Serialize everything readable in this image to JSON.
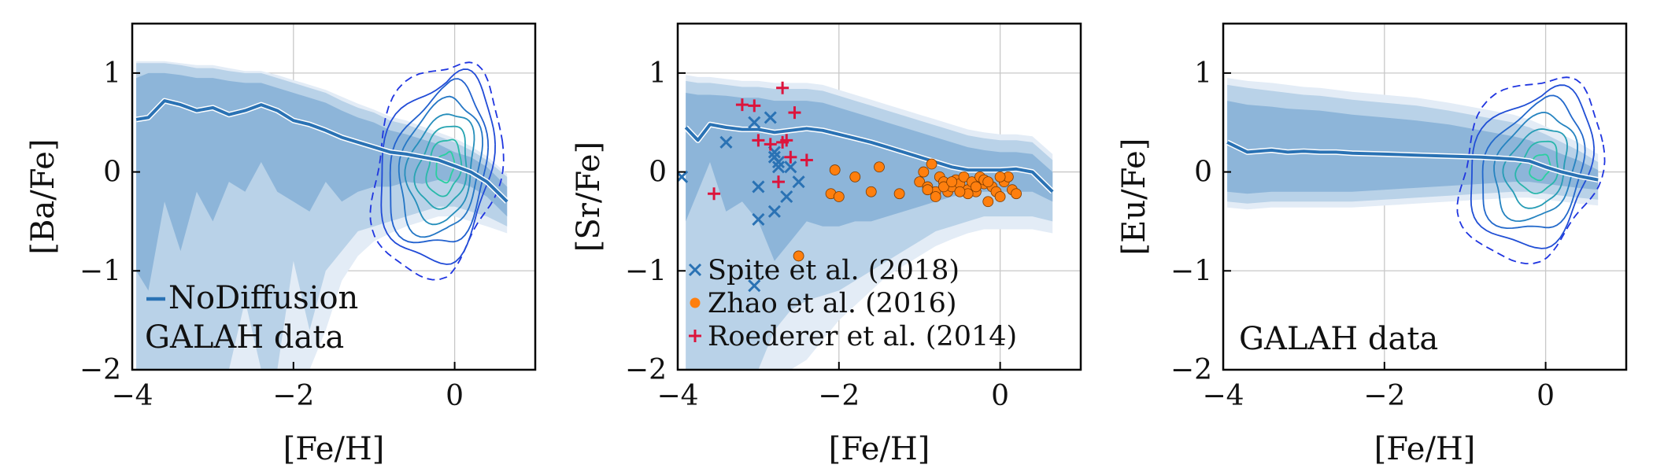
{
  "chart_data": [
    {
      "type": "line",
      "xlabel": "[Fe/H]",
      "ylabel": "[Ba/Fe]",
      "xlim": [
        -4,
        1
      ],
      "ylim": [
        -2,
        1.5
      ],
      "xticks": [
        -4,
        -2,
        0
      ],
      "xtick_labels": [
        "−4",
        "−2",
        "0"
      ],
      "yticks": [
        -2,
        -1,
        0,
        1
      ],
      "ytick_labels": [
        "−2",
        "−1",
        "0",
        "1"
      ],
      "grid": true,
      "model": {
        "name": "NoDiffusion",
        "color": "#2a72b4",
        "x": [
          -3.95,
          -3.8,
          -3.6,
          -3.4,
          -3.2,
          -3.0,
          -2.8,
          -2.6,
          -2.4,
          -2.2,
          -2.0,
          -1.8,
          -1.6,
          -1.4,
          -1.2,
          -1.0,
          -0.8,
          -0.6,
          -0.4,
          -0.2,
          0.0,
          0.2,
          0.4,
          0.65
        ],
        "y": [
          0.53,
          0.55,
          0.72,
          0.68,
          0.62,
          0.65,
          0.58,
          0.62,
          0.68,
          0.62,
          0.52,
          0.48,
          0.42,
          0.35,
          0.3,
          0.25,
          0.2,
          0.18,
          0.15,
          0.12,
          0.06,
          0.0,
          -0.1,
          -0.3
        ],
        "band_inner": {
          "upper": [
            0.95,
            1.0,
            1.0,
            0.98,
            0.95,
            0.95,
            0.92,
            0.9,
            0.9,
            0.85,
            0.8,
            0.75,
            0.7,
            0.62,
            0.55,
            0.5,
            0.42,
            0.38,
            0.33,
            0.28,
            0.2,
            0.15,
            0.05,
            -0.15
          ],
          "lower": [
            -1.0,
            -1.2,
            -0.3,
            -0.8,
            -0.2,
            -0.5,
            -0.1,
            -0.2,
            0.1,
            -0.2,
            -0.3,
            -0.4,
            -0.1,
            -0.3,
            -0.2,
            -0.15,
            -0.15,
            -0.1,
            -0.12,
            -0.08,
            -0.1,
            -0.15,
            -0.25,
            -0.45
          ]
        },
        "band_outer": {
          "upper": [
            1.1,
            1.1,
            1.1,
            1.08,
            1.05,
            1.05,
            1.02,
            1.0,
            1.0,
            0.95,
            0.9,
            0.85,
            0.8,
            0.72,
            0.65,
            0.6,
            0.52,
            0.48,
            0.42,
            0.36,
            0.3,
            0.22,
            0.12,
            -0.05
          ],
          "lower": [
            -2.0,
            -2.0,
            -2.0,
            -2.0,
            -2.0,
            -2.0,
            -2.0,
            -1.3,
            -2.0,
            -2.0,
            -0.9,
            -1.6,
            -1.0,
            -0.8,
            -0.6,
            -0.55,
            -0.5,
            -0.45,
            -0.4,
            -0.35,
            -0.35,
            -0.4,
            -0.45,
            -0.55
          ]
        },
        "band_faint": {
          "upper": [
            1.12,
            1.12,
            1.12,
            1.1,
            1.08,
            1.08,
            1.05,
            1.02,
            1.02,
            0.98,
            0.93,
            0.88,
            0.83,
            0.76,
            0.69,
            0.63,
            0.56,
            0.52,
            0.46,
            0.4,
            0.34,
            0.26,
            0.16,
            -0.02
          ],
          "lower": [
            -2.0,
            -2.0,
            -2.0,
            -2.0,
            -2.0,
            -2.0,
            -2.0,
            -2.0,
            -2.0,
            -2.0,
            -2.0,
            -2.0,
            -1.6,
            -1.1,
            -0.85,
            -0.7,
            -0.62,
            -0.55,
            -0.5,
            -0.45,
            -0.45,
            -0.5,
            -0.55,
            -0.62
          ]
        }
      },
      "contours": {
        "center": [
          -0.1,
          0.05
        ],
        "levels": 8,
        "rx_max": 0.95,
        "ry_max": 1.05,
        "color_outer": "#1f35e0",
        "color_inner": "#2ad0a0"
      },
      "legend": [
        {
          "label": "NoDiffusion",
          "marker": "line"
        }
      ],
      "annotation": "GALAH data"
    },
    {
      "type": "scatter",
      "xlabel": "[Fe/H]",
      "ylabel": "[Sr/Fe]",
      "xlim": [
        -4,
        1
      ],
      "ylim": [
        -2,
        1.5
      ],
      "xticks": [
        -4,
        -2,
        0
      ],
      "xtick_labels": [
        "−4",
        "−2",
        "0"
      ],
      "yticks": [
        -2,
        -1,
        0,
        1
      ],
      "ytick_labels": [
        "−2",
        "−1",
        "0",
        "1"
      ],
      "grid": true,
      "model": {
        "color": "#2a72b4",
        "x": [
          -3.9,
          -3.75,
          -3.6,
          -3.4,
          -3.2,
          -3.0,
          -2.8,
          -2.6,
          -2.4,
          -2.2,
          -2.0,
          -1.8,
          -1.6,
          -1.4,
          -1.2,
          -1.0,
          -0.8,
          -0.6,
          -0.4,
          -0.2,
          0.0,
          0.2,
          0.4,
          0.65
        ],
        "y": [
          0.45,
          0.32,
          0.48,
          0.45,
          0.43,
          0.43,
          0.4,
          0.42,
          0.44,
          0.42,
          0.38,
          0.34,
          0.3,
          0.25,
          0.2,
          0.15,
          0.1,
          0.05,
          0.02,
          0.02,
          0.02,
          0.03,
          0.0,
          -0.2
        ],
        "band_inner": {
          "upper": [
            0.8,
            0.78,
            0.78,
            0.77,
            0.75,
            0.75,
            0.72,
            0.72,
            0.72,
            0.7,
            0.65,
            0.6,
            0.55,
            0.5,
            0.45,
            0.4,
            0.35,
            0.3,
            0.25,
            0.22,
            0.2,
            0.2,
            0.18,
            0.0
          ],
          "lower": [
            -0.5,
            -0.2,
            0.1,
            -0.4,
            -0.3,
            -0.5,
            -0.9,
            -0.7,
            -0.5,
            -0.55,
            -0.55,
            -0.5,
            -0.5,
            -0.45,
            -0.4,
            -0.35,
            -0.3,
            -0.25,
            -0.22,
            -0.2,
            -0.2,
            -0.2,
            -0.2,
            -0.3
          ]
        },
        "band_outer": {
          "upper": [
            0.92,
            0.9,
            0.9,
            0.88,
            0.86,
            0.86,
            0.84,
            0.84,
            0.84,
            0.82,
            0.77,
            0.72,
            0.67,
            0.62,
            0.57,
            0.52,
            0.47,
            0.42,
            0.37,
            0.34,
            0.32,
            0.32,
            0.3,
            0.12
          ],
          "lower": [
            -2.0,
            -2.0,
            -2.0,
            -2.0,
            -2.0,
            -2.0,
            -1.6,
            -1.4,
            -1.3,
            -1.25,
            -1.2,
            -1.1,
            -1.0,
            -0.9,
            -0.8,
            -0.7,
            -0.6,
            -0.55,
            -0.5,
            -0.45,
            -0.45,
            -0.45,
            -0.45,
            -0.5
          ]
        },
        "band_faint": {
          "upper": [
            0.98,
            0.96,
            0.96,
            0.94,
            0.92,
            0.92,
            0.9,
            0.9,
            0.9,
            0.88,
            0.83,
            0.78,
            0.73,
            0.68,
            0.63,
            0.58,
            0.53,
            0.48,
            0.43,
            0.4,
            0.38,
            0.38,
            0.36,
            0.18
          ],
          "lower": [
            -2.0,
            -2.0,
            -2.0,
            -2.0,
            -2.0,
            -2.0,
            -2.0,
            -2.0,
            -1.9,
            -1.7,
            -1.5,
            -1.35,
            -1.2,
            -1.05,
            -0.95,
            -0.85,
            -0.75,
            -0.68,
            -0.62,
            -0.58,
            -0.58,
            -0.58,
            -0.58,
            -0.62
          ]
        }
      },
      "series": [
        {
          "name": "Spite et al. (2018)",
          "marker": "x",
          "color": "#2a72b4",
          "x": [
            -3.95,
            -3.4,
            -3.05,
            -2.85,
            -2.8,
            -2.75,
            -3.0,
            -2.8,
            -2.6,
            -2.5,
            -2.65,
            -2.8,
            -3.0,
            -3.05,
            -2.75
          ],
          "y": [
            -0.05,
            0.3,
            0.5,
            0.55,
            0.15,
            0.1,
            -0.15,
            -0.4,
            0.05,
            -0.1,
            -0.25,
            0.2,
            -0.48,
            -1.15,
            0.05
          ]
        },
        {
          "name": "Zhao et al. (2016)",
          "marker": "o",
          "color": "#ff7f0e",
          "x": [
            -2.5,
            -2.1,
            -2.05,
            -2.0,
            -1.8,
            -1.6,
            -1.5,
            -1.25,
            -1.0,
            -0.95,
            -0.9,
            -0.85,
            -0.8,
            -0.75,
            -0.7,
            -0.65,
            -0.6,
            -0.55,
            -0.5,
            -0.45,
            -0.4,
            -0.35,
            -0.3,
            -0.25,
            -0.2,
            -0.15,
            -0.1,
            -0.05,
            0.0,
            0.05,
            0.1,
            0.15,
            0.2,
            -0.9,
            -0.8,
            -0.7,
            -0.6,
            -0.4,
            -0.2,
            0.0,
            -0.3,
            -0.5,
            -0.15
          ],
          "y": [
            -0.85,
            -0.22,
            0.02,
            -0.25,
            -0.05,
            -0.2,
            0.05,
            -0.22,
            -0.1,
            0.0,
            -0.15,
            0.08,
            -0.2,
            -0.05,
            -0.1,
            -0.2,
            -0.15,
            -0.08,
            -0.12,
            -0.05,
            -0.18,
            -0.1,
            -0.2,
            -0.05,
            -0.12,
            -0.3,
            -0.15,
            -0.2,
            -0.25,
            -0.1,
            -0.05,
            -0.18,
            -0.22,
            -0.18,
            -0.25,
            -0.15,
            -0.1,
            -0.22,
            -0.08,
            -0.05,
            -0.15,
            -0.2,
            -0.1
          ]
        },
        {
          "name": "Roederer et al. (2014)",
          "marker": "+",
          "color": "#dc143c",
          "x": [
            -3.55,
            -3.2,
            -3.05,
            -3.0,
            -2.85,
            -2.7,
            -2.7,
            -2.6,
            -2.55,
            -2.4,
            -2.65,
            -2.75
          ],
          "y": [
            -0.22,
            0.68,
            0.67,
            0.32,
            0.28,
            0.85,
            0.3,
            0.15,
            0.6,
            0.12,
            0.32,
            -0.1
          ]
        }
      ],
      "legend": [
        {
          "label": "Spite et al. (2018)",
          "marker": "x"
        },
        {
          "label": "Zhao et al. (2016)",
          "marker": "o"
        },
        {
          "label": "Roederer et al. (2014)",
          "marker": "+"
        }
      ]
    },
    {
      "type": "line",
      "xlabel": "[Fe/H]",
      "ylabel": "[Eu/Fe]",
      "xlim": [
        -4,
        1
      ],
      "ylim": [
        -2,
        1.5
      ],
      "xticks": [
        -4,
        -2,
        0
      ],
      "xtick_labels": [
        "−4",
        "−2",
        "0"
      ],
      "yticks": [
        -2,
        -1,
        0,
        1
      ],
      "ytick_labels": [
        "−2",
        "−1",
        "0",
        "1"
      ],
      "grid": true,
      "model": {
        "color": "#2a72b4",
        "x": [
          -3.95,
          -3.7,
          -3.4,
          -3.2,
          -3.0,
          -2.8,
          -2.6,
          -2.4,
          -2.0,
          -1.6,
          -1.2,
          -0.8,
          -0.4,
          -0.2,
          0.0,
          0.2,
          0.4,
          0.65
        ],
        "y": [
          0.3,
          0.2,
          0.22,
          0.2,
          0.21,
          0.2,
          0.2,
          0.19,
          0.18,
          0.17,
          0.16,
          0.15,
          0.13,
          0.11,
          0.05,
          0.0,
          -0.04,
          -0.08
        ],
        "band_inner": {
          "upper": [
            0.72,
            0.68,
            0.66,
            0.64,
            0.63,
            0.62,
            0.6,
            0.58,
            0.55,
            0.52,
            0.48,
            0.42,
            0.36,
            0.32,
            0.25,
            0.18,
            0.12,
            0.02
          ],
          "lower": [
            -0.2,
            -0.22,
            -0.2,
            -0.2,
            -0.2,
            -0.2,
            -0.2,
            -0.2,
            -0.18,
            -0.16,
            -0.14,
            -0.12,
            -0.1,
            -0.1,
            -0.12,
            -0.14,
            -0.16,
            -0.18
          ]
        },
        "band_outer": {
          "upper": [
            0.88,
            0.85,
            0.82,
            0.8,
            0.78,
            0.77,
            0.75,
            0.73,
            0.7,
            0.67,
            0.62,
            0.56,
            0.5,
            0.45,
            0.38,
            0.3,
            0.22,
            0.1
          ],
          "lower": [
            -0.3,
            -0.32,
            -0.3,
            -0.3,
            -0.3,
            -0.3,
            -0.3,
            -0.3,
            -0.28,
            -0.26,
            -0.24,
            -0.22,
            -0.2,
            -0.2,
            -0.22,
            -0.24,
            -0.26,
            -0.28
          ]
        },
        "band_faint": {
          "upper": [
            0.95,
            0.92,
            0.9,
            0.88,
            0.86,
            0.85,
            0.83,
            0.81,
            0.78,
            0.75,
            0.7,
            0.64,
            0.58,
            0.53,
            0.46,
            0.38,
            0.3,
            0.18
          ],
          "lower": [
            -0.36,
            -0.38,
            -0.36,
            -0.36,
            -0.36,
            -0.36,
            -0.36,
            -0.36,
            -0.34,
            -0.32,
            -0.3,
            -0.28,
            -0.26,
            -0.26,
            -0.28,
            -0.3,
            -0.32,
            -0.34
          ]
        }
      },
      "contours": {
        "center": [
          -0.05,
          0.05
        ],
        "levels": 7,
        "rx_max": 1.05,
        "ry_max": 0.9,
        "color_outer": "#1f35e0",
        "color_inner": "#2ad0a0"
      },
      "annotation": "GALAH data"
    }
  ]
}
